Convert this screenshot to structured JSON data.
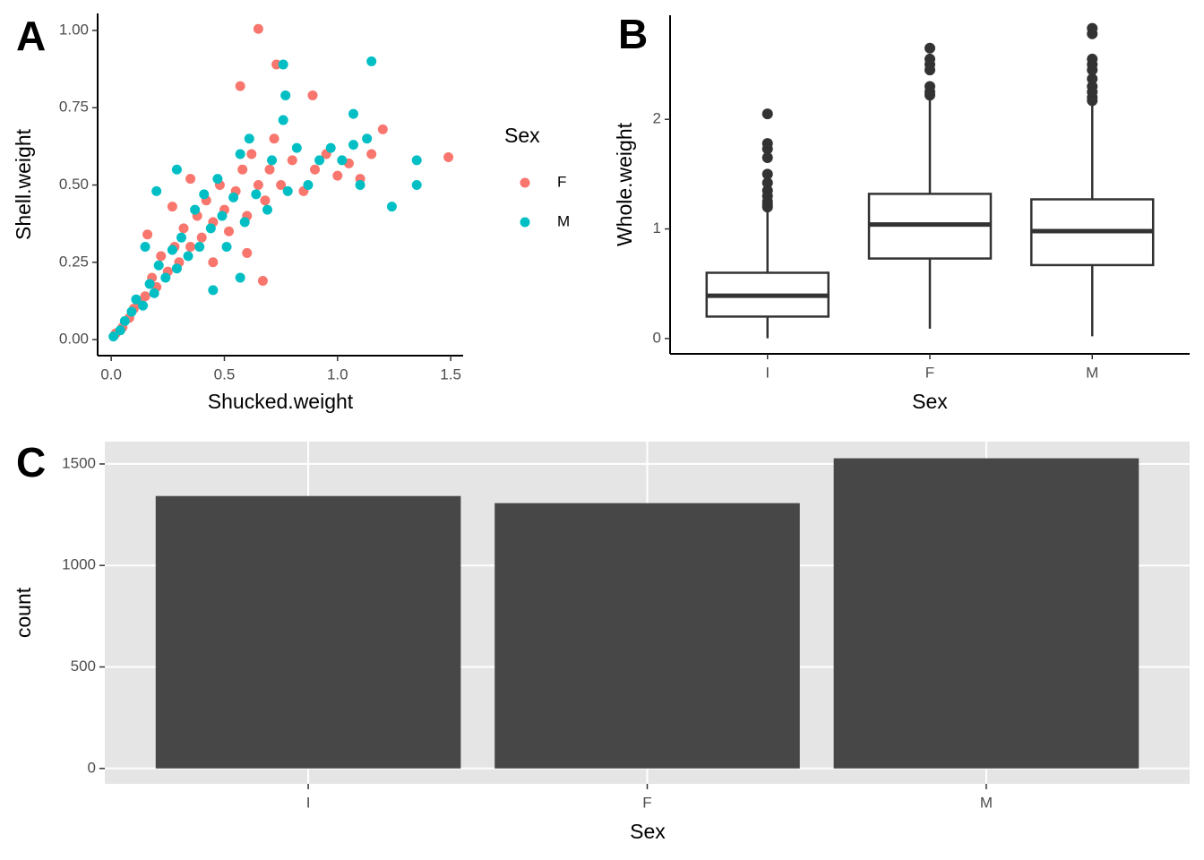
{
  "chart_data": [
    {
      "type": "scatter",
      "tag": "A",
      "x_label": "Shucked.weight",
      "y_label": "Shell.weight",
      "xlim": [
        -0.06,
        1.555
      ],
      "ylim": [
        -0.052,
        1.055
      ],
      "xticks": [
        {
          "value": 0,
          "label": "0.0"
        },
        {
          "value": 0.5,
          "label": "0.5"
        },
        {
          "value": 1,
          "label": "1.0"
        },
        {
          "value": 1.5,
          "label": "1.5"
        }
      ],
      "yticks": [
        {
          "value": 0,
          "label": "0.00"
        },
        {
          "value": 0.25,
          "label": "0.25"
        },
        {
          "value": 0.5,
          "label": "0.50"
        },
        {
          "value": 0.75,
          "label": "0.75"
        },
        {
          "value": 1,
          "label": "1.00"
        }
      ],
      "legend_title": "Sex",
      "series": [
        {
          "name": "F",
          "color": "#F8766D",
          "x": [
            0.02,
            0.05,
            0.08,
            0.1,
            0.12,
            0.15,
            0.18,
            0.2,
            0.22,
            0.25,
            0.28,
            0.3,
            0.32,
            0.35,
            0.38,
            0.4,
            0.42,
            0.45,
            0.48,
            0.5,
            0.52,
            0.55,
            0.58,
            0.6,
            0.62,
            0.65,
            0.68,
            0.7,
            0.72,
            0.75,
            0.8,
            0.85,
            0.9,
            0.95,
            1.0,
            1.05,
            1.1,
            1.15,
            1.2,
            1.49,
            0.65,
            0.73,
            0.57,
            0.89,
            0.35,
            0.27,
            0.16,
            0.6,
            0.67,
            0.45
          ],
          "values": [
            0.02,
            0.04,
            0.07,
            0.1,
            0.12,
            0.14,
            0.2,
            0.17,
            0.27,
            0.22,
            0.3,
            0.25,
            0.36,
            0.3,
            0.4,
            0.33,
            0.45,
            0.38,
            0.5,
            0.42,
            0.35,
            0.48,
            0.55,
            0.4,
            0.6,
            0.5,
            0.45,
            0.55,
            0.65,
            0.5,
            0.58,
            0.48,
            0.55,
            0.6,
            0.53,
            0.57,
            0.52,
            0.6,
            0.68,
            0.59,
            1.005,
            0.89,
            0.82,
            0.79,
            0.52,
            0.43,
            0.34,
            0.28,
            0.19,
            0.25
          ]
        },
        {
          "name": "M",
          "color": "#00BFC4",
          "x": [
            0.01,
            0.04,
            0.06,
            0.09,
            0.11,
            0.14,
            0.17,
            0.19,
            0.21,
            0.24,
            0.27,
            0.29,
            0.31,
            0.34,
            0.37,
            0.39,
            0.41,
            0.44,
            0.47,
            0.49,
            0.51,
            0.54,
            0.57,
            0.59,
            0.61,
            0.64,
            0.69,
            0.71,
            0.76,
            0.78,
            0.82,
            0.87,
            0.92,
            0.97,
            1.02,
            1.07,
            1.1,
            1.13,
            1.24,
            1.35,
            1.35,
            1.15,
            0.76,
            0.77,
            1.07,
            0.29,
            0.2,
            0.15,
            0.45,
            0.57
          ],
          "values": [
            0.01,
            0.03,
            0.06,
            0.09,
            0.13,
            0.11,
            0.18,
            0.15,
            0.24,
            0.2,
            0.29,
            0.23,
            0.33,
            0.27,
            0.42,
            0.3,
            0.47,
            0.36,
            0.52,
            0.4,
            0.3,
            0.46,
            0.6,
            0.38,
            0.65,
            0.47,
            0.42,
            0.58,
            0.71,
            0.48,
            0.62,
            0.5,
            0.58,
            0.62,
            0.58,
            0.63,
            0.5,
            0.65,
            0.43,
            0.58,
            0.5,
            0.9,
            0.89,
            0.79,
            0.73,
            0.55,
            0.48,
            0.3,
            0.16,
            0.2
          ]
        }
      ]
    },
    {
      "type": "box",
      "tag": "B",
      "x_label": "Sex",
      "y_label": "Whole.weight",
      "categories": [
        "I",
        "F",
        "M"
      ],
      "ylim": [
        -0.14,
        2.95
      ],
      "yticks": [
        0,
        1,
        2
      ],
      "color": "#333333",
      "boxes": [
        {
          "min": 0.002,
          "q1": 0.2,
          "median": 0.39,
          "q3": 0.6,
          "max": 1.18,
          "outliers": [
            1.2,
            1.22,
            1.25,
            1.3,
            1.35,
            1.42,
            1.5,
            1.65,
            1.73,
            1.78,
            2.05
          ]
        },
        {
          "min": 0.09,
          "q1": 0.73,
          "median": 1.04,
          "q3": 1.32,
          "max": 2.2,
          "outliers": [
            2.22,
            2.25,
            2.3,
            2.45,
            2.5,
            2.55,
            2.65
          ]
        },
        {
          "min": 0.02,
          "q1": 0.67,
          "median": 0.98,
          "q3": 1.27,
          "max": 2.14,
          "outliers": [
            2.17,
            2.2,
            2.25,
            2.3,
            2.37,
            2.45,
            2.5,
            2.55,
            2.78,
            2.83
          ]
        }
      ]
    },
    {
      "type": "bar",
      "tag": "C",
      "x_label": "Sex",
      "y_label": "count",
      "categories": [
        "I",
        "F",
        "M"
      ],
      "values": [
        1342,
        1307,
        1528
      ],
      "color": "#474747",
      "ylim": [
        -76,
        1610
      ],
      "yticks": [
        0,
        500,
        1000,
        1500
      ],
      "grid": true
    }
  ]
}
